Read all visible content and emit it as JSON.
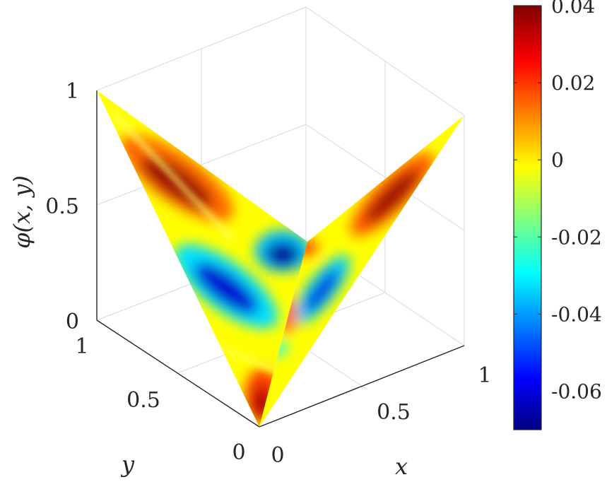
{
  "chart_data": {
    "type": "heatmap",
    "subtype": "3d-surface",
    "title": "",
    "xlabel": "x",
    "ylabel": "y",
    "zlabel": "φ(x, y)",
    "xlim": [
      0,
      1
    ],
    "ylim": [
      0,
      1
    ],
    "zlim": [
      0,
      1
    ],
    "x_ticks": [
      "0",
      "0.5",
      "1"
    ],
    "y_ticks": [
      "0",
      "0.5",
      "1"
    ],
    "z_ticks": [
      "0",
      "0.5",
      "1"
    ],
    "grid": true,
    "colormap": "jet",
    "colorbar": {
      "range": [
        -0.07,
        0.04
      ],
      "ticks": [
        "0.04",
        "0.02",
        "0",
        "-0.02",
        "-0.04",
        "-0.06"
      ],
      "tick_values": [
        0.04,
        0.02,
        0,
        -0.02,
        -0.04,
        -0.06
      ],
      "placement": "right"
    },
    "surface": {
      "shape": "V-shaped surface rising along the x = 0 and y = 0 edges, z = max(x, y)-like",
      "extremes": [
        {
          "location": "upper left arm",
          "value": 0.04
        },
        {
          "location": "upper right arm",
          "value": 0.04
        },
        {
          "location": "bottom vertex",
          "value": 0.04
        },
        {
          "location": "inner lower-left arm",
          "value": -0.07
        },
        {
          "location": "inner lower-right arm",
          "value": -0.06
        },
        {
          "location": "inner vertex band",
          "value": -0.07
        }
      ]
    },
    "colors": {
      "max": "#800000",
      "high": "#ff2000",
      "mid": "#ffff00",
      "low": "#00c8ff",
      "min": "#000090"
    }
  }
}
